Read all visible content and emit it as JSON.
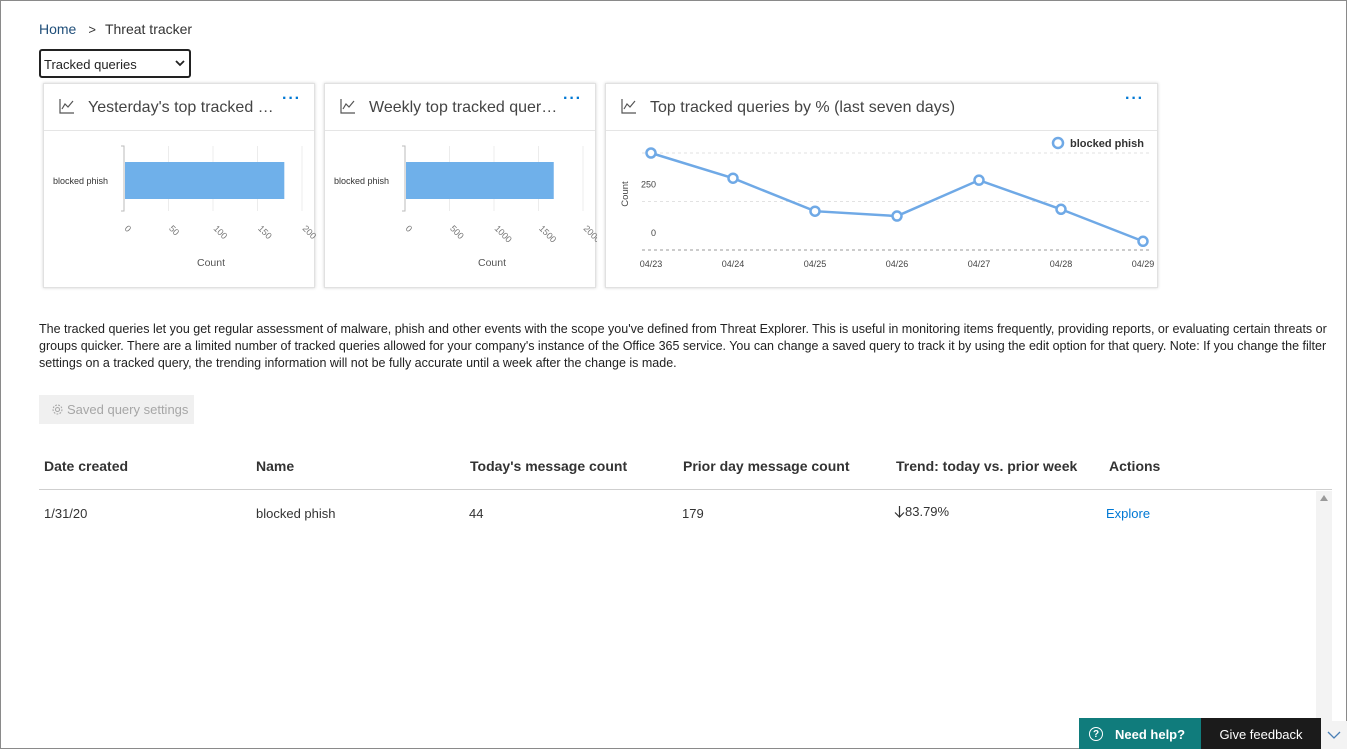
{
  "breadcrumb": {
    "home": "Home",
    "separator": ">",
    "current": "Threat tracker"
  },
  "view_select": {
    "value": "Tracked queries"
  },
  "cards": [
    {
      "title": "Yesterday's top tracked qu...",
      "more": "···",
      "icon": "line-chart-icon"
    },
    {
      "title": "Weekly top tracked queries",
      "more": "···",
      "icon": "line-chart-icon"
    },
    {
      "title": "Top tracked queries by % (last seven days)",
      "more": "···",
      "icon": "line-chart-icon"
    }
  ],
  "chart_data": [
    {
      "type": "bar",
      "orientation": "horizontal",
      "categories": [
        "blocked phish"
      ],
      "values": [
        179
      ],
      "xlabel": "Count",
      "xticks": [
        "0",
        "50",
        "100",
        "150",
        "200"
      ],
      "xlim": [
        0,
        200
      ]
    },
    {
      "type": "bar",
      "orientation": "horizontal",
      "categories": [
        "blocked phish"
      ],
      "values": [
        1660
      ],
      "xlabel": "Count",
      "xticks": [
        "0",
        "500",
        "1000",
        "1500",
        "2000"
      ],
      "xlim": [
        0,
        2000
      ]
    },
    {
      "type": "line",
      "x": [
        "04/23",
        "04/24",
        "04/25",
        "04/26",
        "04/27",
        "04/28",
        "04/29"
      ],
      "series": [
        {
          "name": "blocked phish",
          "values": [
            500,
            370,
            200,
            175,
            360,
            210,
            45
          ]
        }
      ],
      "ylabel": "Count",
      "yticks": [
        "250",
        "0"
      ],
      "legend": "top-right",
      "color": "#6fa9e6"
    }
  ],
  "description": "The tracked queries let you get regular assessment of malware, phish and other events with the scope you've defined from Threat Explorer. This is useful in monitoring items frequently, providing reports, or evaluating certain threats or groups quicker. There are a limited number of tracked queries allowed for your company's instance of the Office 365 service. You can change a saved query to track it by using the edit option for that query. Note: If you change the filter settings on a tracked query, the trending information will not be fully accurate until a week after the change is made.",
  "saved_settings": {
    "label": "Saved query settings",
    "icon": "gear-icon"
  },
  "table": {
    "headers": [
      "Date created",
      "Name",
      "Today's message count",
      "Prior day message count",
      "Trend: today vs. prior week",
      "Actions"
    ],
    "rows": [
      {
        "date": "1/31/20",
        "name": "blocked phish",
        "today": "44",
        "prior": "179",
        "trend": "83.79%",
        "trend_icon": "arrow-down-icon",
        "action": "Explore"
      }
    ]
  },
  "footer": {
    "need_help": "Need help?",
    "give_feedback": "Give feedback"
  },
  "colors": {
    "accent": "#0078d4",
    "bar": "#6fb0ea",
    "help": "#107c7c"
  }
}
